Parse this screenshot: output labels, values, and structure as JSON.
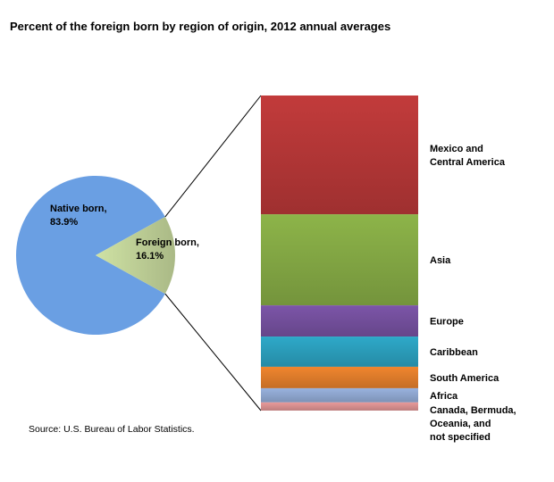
{
  "chart_data": {
    "type": "bar-of-pie",
    "title": "Percent of the foreign born by region of origin, 2012 annual averages",
    "pie": [
      {
        "label_lines": [
          "Native born,",
          "83.9%"
        ],
        "value": 83.9,
        "color": "#6a9fe3"
      },
      {
        "label_lines": [
          "Foreign born,",
          "16.1%"
        ],
        "value": 16.1,
        "color": "#cfe2a4"
      }
    ],
    "stacked_bar": [
      {
        "label_lines": [
          "Mexico and",
          "Central America"
        ],
        "value": 37.7,
        "color": "#c23b3b"
      },
      {
        "label_lines": [
          "Asia"
        ],
        "value": 28.9,
        "color": "#8db449"
      },
      {
        "label_lines": [
          "Europe"
        ],
        "value": 9.9,
        "color": "#7c55a8"
      },
      {
        "label_lines": [
          "Caribbean"
        ],
        "value": 9.6,
        "color": "#2ea9c9"
      },
      {
        "label_lines": [
          "South America"
        ],
        "value": 6.8,
        "color": "#f0862e"
      },
      {
        "label_lines": [
          "Africa"
        ],
        "value": 4.5,
        "color": "#99b2de"
      },
      {
        "label_lines": [
          "Canada, Bermuda,",
          "Oceania, and",
          "not specified"
        ],
        "value": 2.6,
        "color": "#e89a9a"
      }
    ],
    "source": "Source: U.S. Bureau of Labor Statistics."
  }
}
